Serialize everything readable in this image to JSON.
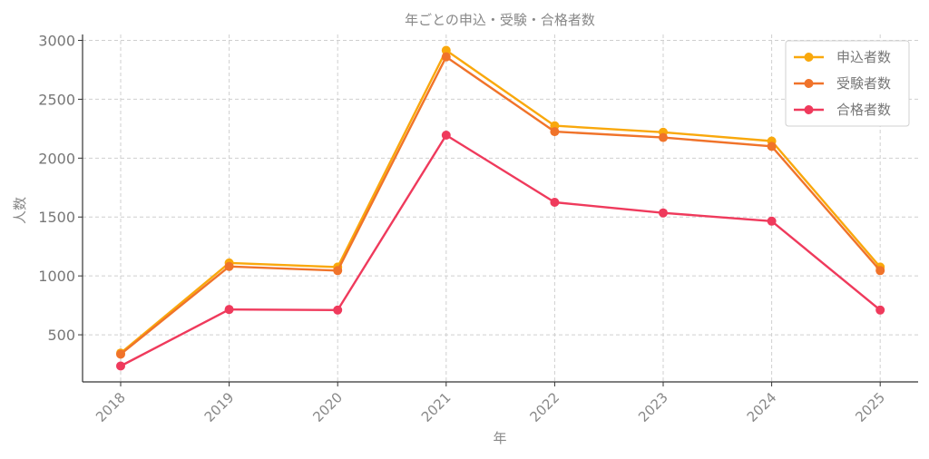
{
  "chart_data": {
    "type": "line",
    "title": "年ごとの申込・受験・合格者数",
    "xlabel": "年",
    "ylabel": "人数",
    "categories": [
      "2018",
      "2019",
      "2020",
      "2021",
      "2022",
      "2023",
      "2024",
      "2025"
    ],
    "ylim": [
      100,
      3050
    ],
    "yticks": [
      500,
      1000,
      1500,
      2000,
      2500,
      3000
    ],
    "grid": true,
    "legend_position": "top-right",
    "series": [
      {
        "name": "申込者数",
        "color": "#F9A80C",
        "values": [
          345,
          1110,
          1075,
          2915,
          2275,
          2220,
          2145,
          1075
        ]
      },
      {
        "name": "受験者数",
        "color": "#F0732A",
        "values": [
          335,
          1080,
          1045,
          2860,
          2225,
          2175,
          2100,
          1045
        ]
      },
      {
        "name": "合格者数",
        "color": "#EF3A5C",
        "values": [
          235,
          715,
          710,
          2195,
          1625,
          1535,
          1465,
          710
        ]
      }
    ]
  }
}
